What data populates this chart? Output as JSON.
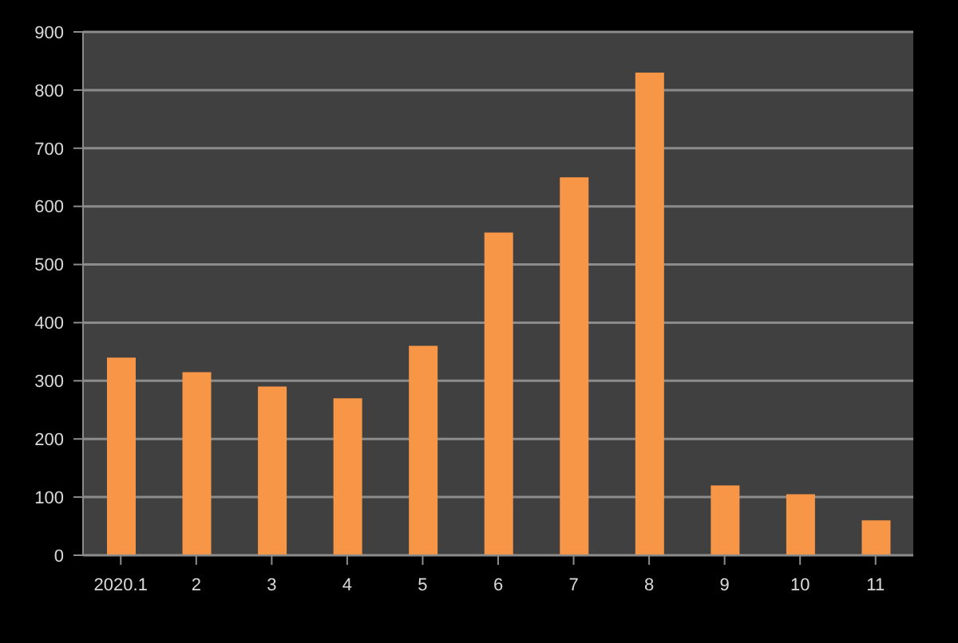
{
  "chart_data": {
    "type": "bar",
    "categories": [
      "2020.1",
      "2",
      "3",
      "4",
      "5",
      "6",
      "7",
      "8",
      "9",
      "10",
      "11"
    ],
    "values": [
      340,
      315,
      290,
      270,
      360,
      555,
      650,
      830,
      120,
      105,
      60
    ],
    "color": "#f79646",
    "ylim": [
      0,
      900
    ],
    "yticks": [
      0,
      100,
      200,
      300,
      400,
      500,
      600,
      700,
      800,
      900
    ],
    "grid": "y"
  }
}
